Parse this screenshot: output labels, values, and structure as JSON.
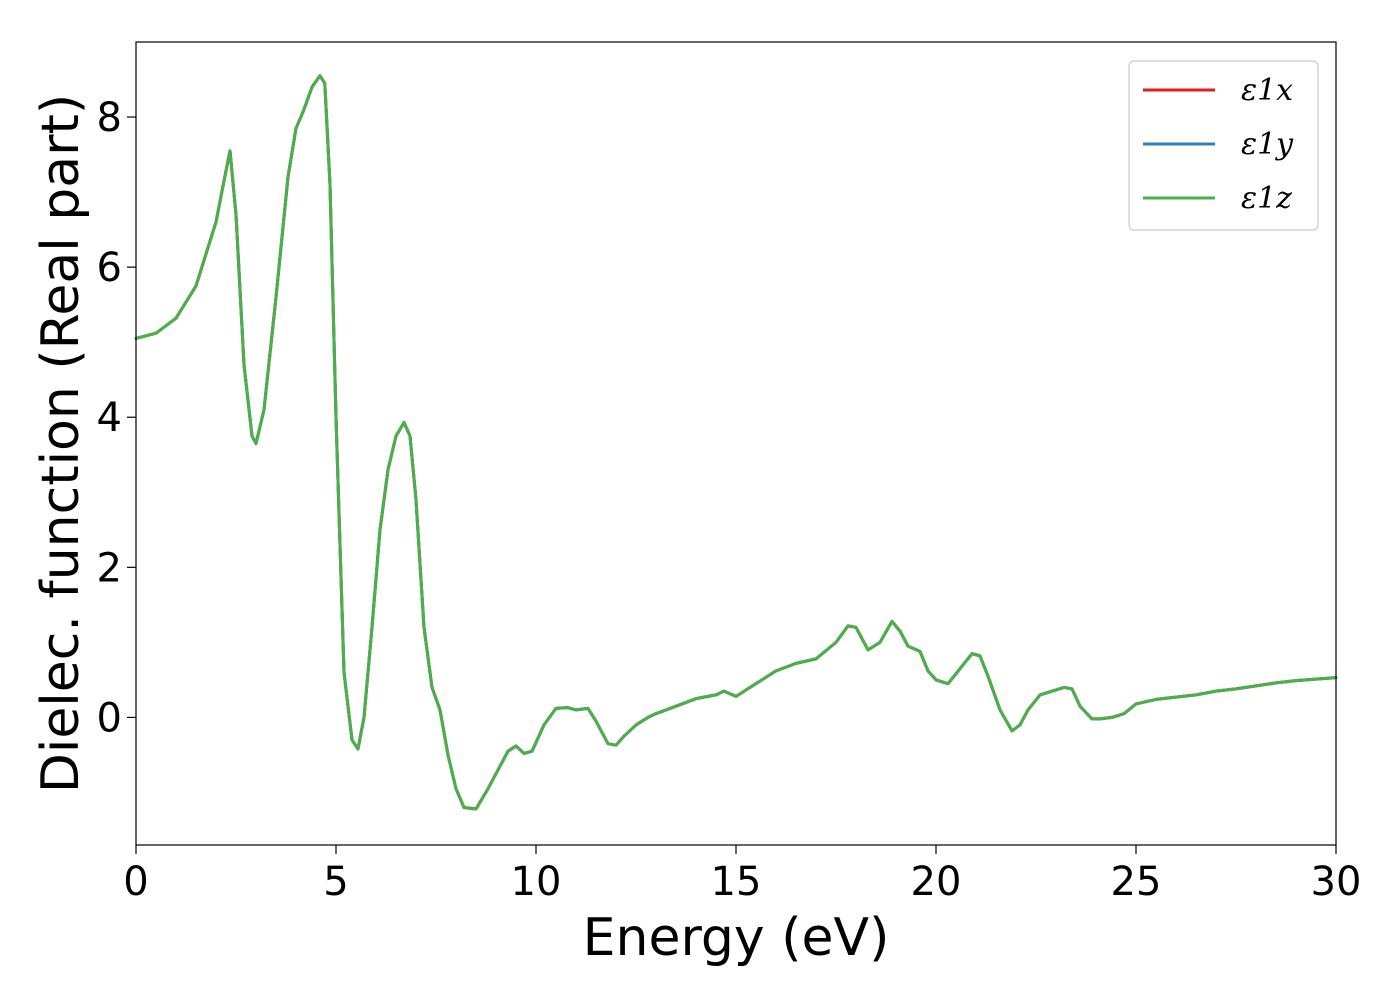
{
  "chart_data": {
    "type": "line",
    "xlabel": "Energy (eV)",
    "ylabel": "Dielec. function (Real part)",
    "xlim": [
      0,
      30
    ],
    "ylim": [
      -1.7,
      9.0
    ],
    "xticks": [
      0,
      5,
      10,
      15,
      20,
      25,
      30
    ],
    "yticks": [
      0,
      2,
      4,
      6,
      8
    ],
    "xtick_labels": [
      "0",
      "5",
      "10",
      "15",
      "20",
      "25",
      "30"
    ],
    "ytick_labels": [
      "0",
      "2",
      "4",
      "6",
      "8"
    ],
    "grid": false,
    "legend_position": "top-right",
    "x": [
      0,
      0.5,
      1.0,
      1.5,
      2.0,
      2.2,
      2.35,
      2.5,
      2.7,
      2.9,
      3.0,
      3.2,
      3.5,
      3.8,
      4.0,
      4.2,
      4.4,
      4.6,
      4.72,
      4.85,
      5.0,
      5.2,
      5.4,
      5.55,
      5.7,
      5.9,
      6.1,
      6.3,
      6.5,
      6.7,
      6.85,
      7.0,
      7.2,
      7.4,
      7.6,
      7.8,
      8.0,
      8.2,
      8.5,
      8.8,
      9.0,
      9.3,
      9.5,
      9.7,
      9.9,
      10.2,
      10.5,
      10.8,
      11.0,
      11.3,
      11.5,
      11.8,
      12.0,
      12.2,
      12.5,
      12.8,
      13.0,
      13.5,
      14.0,
      14.5,
      14.7,
      15.0,
      15.5,
      16.0,
      16.5,
      17.0,
      17.5,
      17.8,
      18.0,
      18.3,
      18.6,
      18.9,
      19.1,
      19.3,
      19.6,
      19.8,
      20.0,
      20.3,
      20.6,
      20.9,
      21.1,
      21.3,
      21.6,
      21.9,
      22.1,
      22.3,
      22.6,
      22.9,
      23.2,
      23.4,
      23.6,
      23.9,
      24.1,
      24.4,
      24.7,
      25.0,
      25.5,
      26.0,
      26.5,
      27.0,
      27.5,
      28.0,
      28.5,
      29.0,
      29.5,
      30.0
    ],
    "series": [
      {
        "name": "ε1x",
        "color": "#e41a1c",
        "values": [
          5.05,
          5.12,
          5.32,
          5.75,
          6.6,
          7.15,
          7.55,
          6.7,
          4.7,
          3.75,
          3.65,
          4.1,
          5.6,
          7.2,
          7.85,
          8.1,
          8.4,
          8.55,
          8.45,
          7.1,
          4.0,
          0.6,
          -0.3,
          -0.42,
          0.0,
          1.2,
          2.5,
          3.3,
          3.75,
          3.93,
          3.75,
          2.9,
          1.2,
          0.4,
          0.1,
          -0.5,
          -0.95,
          -1.2,
          -1.22,
          -0.95,
          -0.75,
          -0.45,
          -0.38,
          -0.48,
          -0.45,
          -0.1,
          0.12,
          0.13,
          0.1,
          0.12,
          -0.05,
          -0.35,
          -0.37,
          -0.25,
          -0.1,
          0.0,
          0.05,
          0.15,
          0.25,
          0.3,
          0.35,
          0.28,
          0.45,
          0.62,
          0.72,
          0.78,
          1.0,
          1.22,
          1.2,
          0.9,
          1.0,
          1.28,
          1.15,
          0.95,
          0.88,
          0.62,
          0.5,
          0.45,
          0.65,
          0.85,
          0.82,
          0.55,
          0.1,
          -0.18,
          -0.1,
          0.1,
          0.3,
          0.35,
          0.4,
          0.38,
          0.15,
          -0.02,
          -0.02,
          0.0,
          0.05,
          0.18,
          0.24,
          0.27,
          0.3,
          0.35,
          0.38,
          0.42,
          0.46,
          0.49,
          0.51,
          0.53
        ]
      },
      {
        "name": "ε1y",
        "color": "#377eb8",
        "values": [
          5.05,
          5.12,
          5.32,
          5.75,
          6.6,
          7.15,
          7.55,
          6.7,
          4.7,
          3.75,
          3.65,
          4.1,
          5.6,
          7.2,
          7.85,
          8.1,
          8.4,
          8.55,
          8.45,
          7.1,
          4.0,
          0.6,
          -0.3,
          -0.42,
          0.0,
          1.2,
          2.5,
          3.3,
          3.75,
          3.93,
          3.75,
          2.9,
          1.2,
          0.4,
          0.1,
          -0.5,
          -0.95,
          -1.2,
          -1.22,
          -0.95,
          -0.75,
          -0.45,
          -0.38,
          -0.48,
          -0.45,
          -0.1,
          0.12,
          0.13,
          0.1,
          0.12,
          -0.05,
          -0.35,
          -0.37,
          -0.25,
          -0.1,
          0.0,
          0.05,
          0.15,
          0.25,
          0.3,
          0.35,
          0.28,
          0.45,
          0.62,
          0.72,
          0.78,
          1.0,
          1.22,
          1.2,
          0.9,
          1.0,
          1.28,
          1.15,
          0.95,
          0.88,
          0.62,
          0.5,
          0.45,
          0.65,
          0.85,
          0.82,
          0.55,
          0.1,
          -0.18,
          -0.1,
          0.1,
          0.3,
          0.35,
          0.4,
          0.38,
          0.15,
          -0.02,
          -0.02,
          0.0,
          0.05,
          0.18,
          0.24,
          0.27,
          0.3,
          0.35,
          0.38,
          0.42,
          0.46,
          0.49,
          0.51,
          0.53
        ]
      },
      {
        "name": "ε1z",
        "color": "#4daf4a",
        "values": [
          5.05,
          5.12,
          5.32,
          5.75,
          6.6,
          7.15,
          7.55,
          6.7,
          4.7,
          3.75,
          3.65,
          4.1,
          5.6,
          7.2,
          7.85,
          8.1,
          8.4,
          8.55,
          8.45,
          7.1,
          4.0,
          0.6,
          -0.3,
          -0.42,
          0.0,
          1.2,
          2.5,
          3.3,
          3.75,
          3.93,
          3.75,
          2.9,
          1.2,
          0.4,
          0.1,
          -0.5,
          -0.95,
          -1.2,
          -1.22,
          -0.95,
          -0.75,
          -0.45,
          -0.38,
          -0.48,
          -0.45,
          -0.1,
          0.12,
          0.13,
          0.1,
          0.12,
          -0.05,
          -0.35,
          -0.37,
          -0.25,
          -0.1,
          0.0,
          0.05,
          0.15,
          0.25,
          0.3,
          0.35,
          0.28,
          0.45,
          0.62,
          0.72,
          0.78,
          1.0,
          1.22,
          1.2,
          0.9,
          1.0,
          1.28,
          1.15,
          0.95,
          0.88,
          0.62,
          0.5,
          0.45,
          0.65,
          0.85,
          0.82,
          0.55,
          0.1,
          -0.18,
          -0.1,
          0.1,
          0.3,
          0.35,
          0.4,
          0.38,
          0.15,
          -0.02,
          -0.02,
          0.0,
          0.05,
          0.18,
          0.24,
          0.27,
          0.3,
          0.35,
          0.38,
          0.42,
          0.46,
          0.49,
          0.51,
          0.53
        ]
      }
    ]
  }
}
